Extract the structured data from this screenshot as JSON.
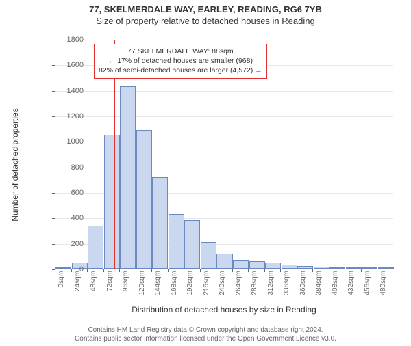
{
  "title": "77, SKELMERDALE WAY, EARLEY, READING, RG6 7YB",
  "subtitle": "Size of property relative to detached houses in Reading",
  "ylabel": "Number of detached properties",
  "xlabel": "Distribution of detached houses by size in Reading",
  "chart": {
    "type": "histogram",
    "ylim": [
      0,
      1800
    ],
    "ytick_step": 200,
    "xlim": [
      0,
      504
    ],
    "xtick_step": 24,
    "bar_fill": "#c9d7ef",
    "bar_stroke": "#6b88c0",
    "grid_color": "#e8e8e8",
    "background": "#ffffff",
    "refline_x": 88,
    "refline_color": "#e03030",
    "categories": [
      "0sqm",
      "24sqm",
      "48sqm",
      "72sqm",
      "96sqm",
      "120sqm",
      "144sqm",
      "168sqm",
      "192sqm",
      "216sqm",
      "240sqm",
      "264sqm",
      "288sqm",
      "312sqm",
      "336sqm",
      "360sqm",
      "384sqm",
      "408sqm",
      "432sqm",
      "456sqm",
      "480sqm"
    ],
    "values": [
      0,
      50,
      340,
      1050,
      1430,
      1090,
      720,
      430,
      380,
      210,
      120,
      70,
      60,
      50,
      30,
      20,
      15,
      10,
      10,
      8,
      5
    ]
  },
  "annotation": {
    "line1": "77 SKELMERDALE WAY: 88sqm",
    "line2": "← 17% of detached houses are smaller (968)",
    "line3": "82% of semi-detached houses are larger (4,572) →"
  },
  "footer": {
    "line1": "Contains HM Land Registry data © Crown copyright and database right 2024.",
    "line2": "Contains public sector information licensed under the Open Government Licence v3.0."
  }
}
